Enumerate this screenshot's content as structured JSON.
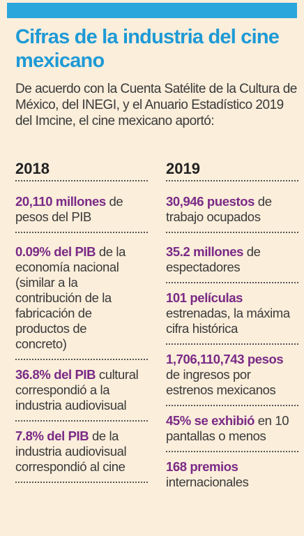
{
  "title": "Cifras de la industria del cine mexicano",
  "intro": "De acuerdo con la Cuenta Satélite de la Cultura de México, del INEGI, y el Anuario Estadístico 2019 del Imcine, el cine mexicano aportó:",
  "col2018": {
    "year": "2018",
    "items": [
      {
        "highlight": "20,110 millones",
        "text": " de pesos del PIB"
      },
      {
        "highlight": "0.09% del PIB",
        "text": " de la economía nacional (similar a la contribución de la fabricación de productos de concreto)"
      },
      {
        "highlight": "36.8% del PIB",
        "text": " cultural correspondió a la industria audiovisual"
      },
      {
        "highlight": "7.8% del PIB",
        "text": " de la industria audiovisual correspondió al cine"
      }
    ]
  },
  "col2019": {
    "year": "2019",
    "items": [
      {
        "highlight": "30,946 puestos",
        "text": " de trabajo ocupados"
      },
      {
        "highlight": "35.2 millones",
        "text": " de espectadores"
      },
      {
        "highlight": "101 películas",
        "text": " estrenadas, la máxima cifra histórica"
      },
      {
        "highlight": "1,706,110,743 pesos",
        "text": " de ingresos por estrenos mexicanos"
      },
      {
        "highlight": "45% se exhibió",
        "text": " en 10 pantallas o menos"
      },
      {
        "highlight": "168 premios",
        "text": " internacionales"
      }
    ]
  },
  "colors": {
    "accent": "#1e9ad6",
    "highlight": "#7a2a86",
    "background": "#fbeedb"
  }
}
